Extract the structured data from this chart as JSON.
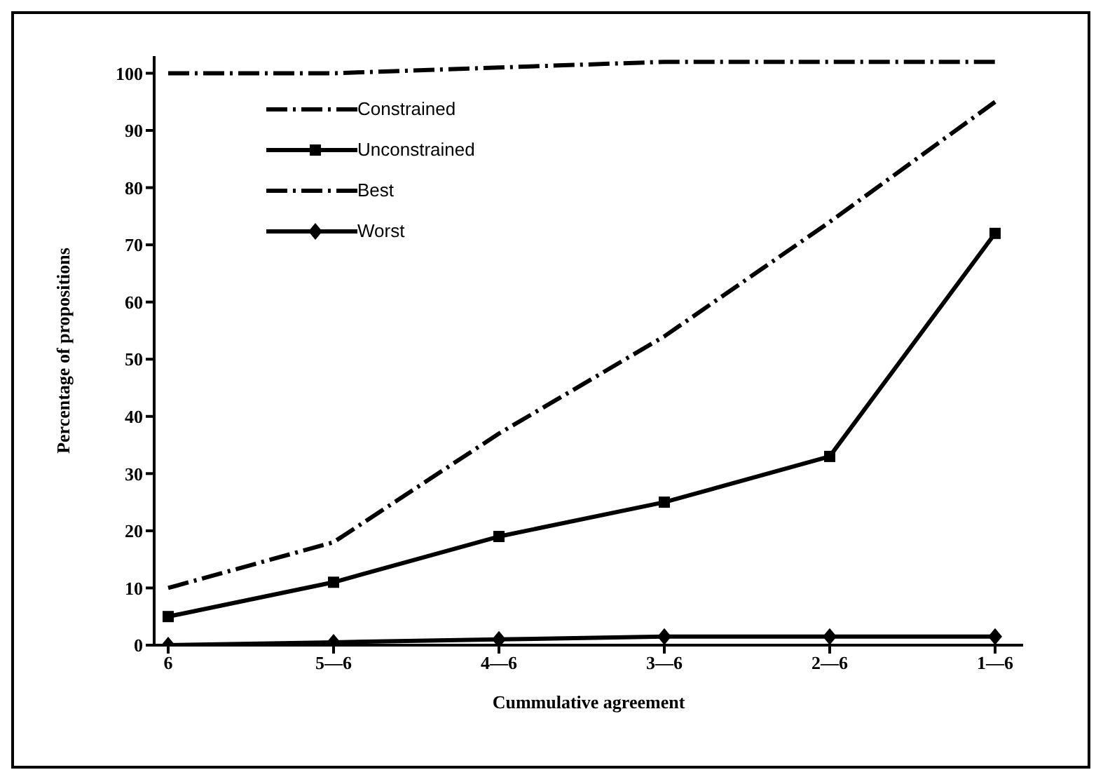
{
  "chart_data": {
    "type": "line",
    "xlabel": "Cummulative agreement",
    "ylabel": "Percentage of propositions",
    "categories": [
      "6",
      "5—6",
      "4—6",
      "3—6",
      "2—6",
      "1—6"
    ],
    "series": [
      {
        "name": "Constrained",
        "color": "#000000",
        "values": [
          10,
          18,
          37,
          54,
          74,
          95
        ],
        "line_style": "dashdot",
        "marker": "none"
      },
      {
        "name": "Unconstrained",
        "color": "#000000",
        "values": [
          5,
          11,
          19,
          25,
          33,
          72
        ],
        "line_style": "solid",
        "marker": "square"
      },
      {
        "name": "Best",
        "color": "#000000",
        "values": [
          100,
          100,
          101,
          102,
          102,
          102
        ],
        "line_style": "dashdot",
        "marker": "none"
      },
      {
        "name": "Worst",
        "color": "#000000",
        "values": [
          0,
          0.5,
          1,
          1.5,
          1.5,
          1.5
        ],
        "line_style": "solid",
        "marker": "diamond"
      }
    ],
    "ylim": [
      0,
      103
    ],
    "yticks": [
      0,
      10,
      20,
      30,
      40,
      50,
      60,
      70,
      80,
      90,
      100
    ],
    "grid": false,
    "legend": "top left"
  }
}
